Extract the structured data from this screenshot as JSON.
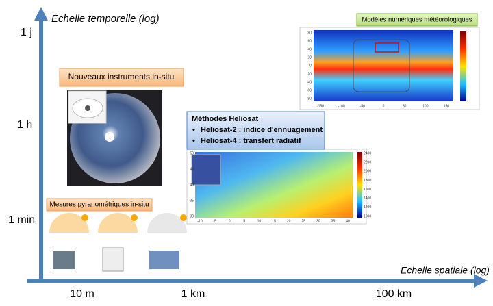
{
  "axes": {
    "y_label": "Echelle temporelle (log)",
    "x_label": "Echelle spatiale (log)",
    "y_ticks": [
      "1 j",
      "1 h",
      "1 min"
    ],
    "x_ticks": [
      "10 m",
      "1 km",
      "100 km"
    ]
  },
  "boxes": {
    "in_situ_new": "Nouveaux instruments in-situ",
    "pyrano": "Mesures pyranométriques in-situ",
    "heliosat": {
      "title": "Méthodes Heliosat",
      "items": [
        "Heliosat-2 : indice d'ennuagement",
        "Heliosat-4 : transfert radiatif"
      ]
    },
    "nwp": "Modèles numériques météorologiques"
  },
  "nwp_map": {
    "x_ticks": [
      "-150",
      "-100",
      "-50",
      "0",
      "50",
      "100",
      "150"
    ],
    "y_ticks": [
      "80",
      "60",
      "40",
      "20",
      "0",
      "-20",
      "-40",
      "-60",
      "-80"
    ]
  },
  "heliosat_map": {
    "x_ticks": [
      "-10",
      "-5",
      "0",
      "5",
      "10",
      "15",
      "20",
      "25",
      "30",
      "35",
      "40"
    ],
    "y_ticks": [
      "50",
      "45",
      "40",
      "35",
      "30"
    ],
    "colorbar": [
      "2400",
      "2200",
      "2000",
      "1800",
      "1600",
      "1400",
      "1200",
      "1000"
    ]
  }
}
